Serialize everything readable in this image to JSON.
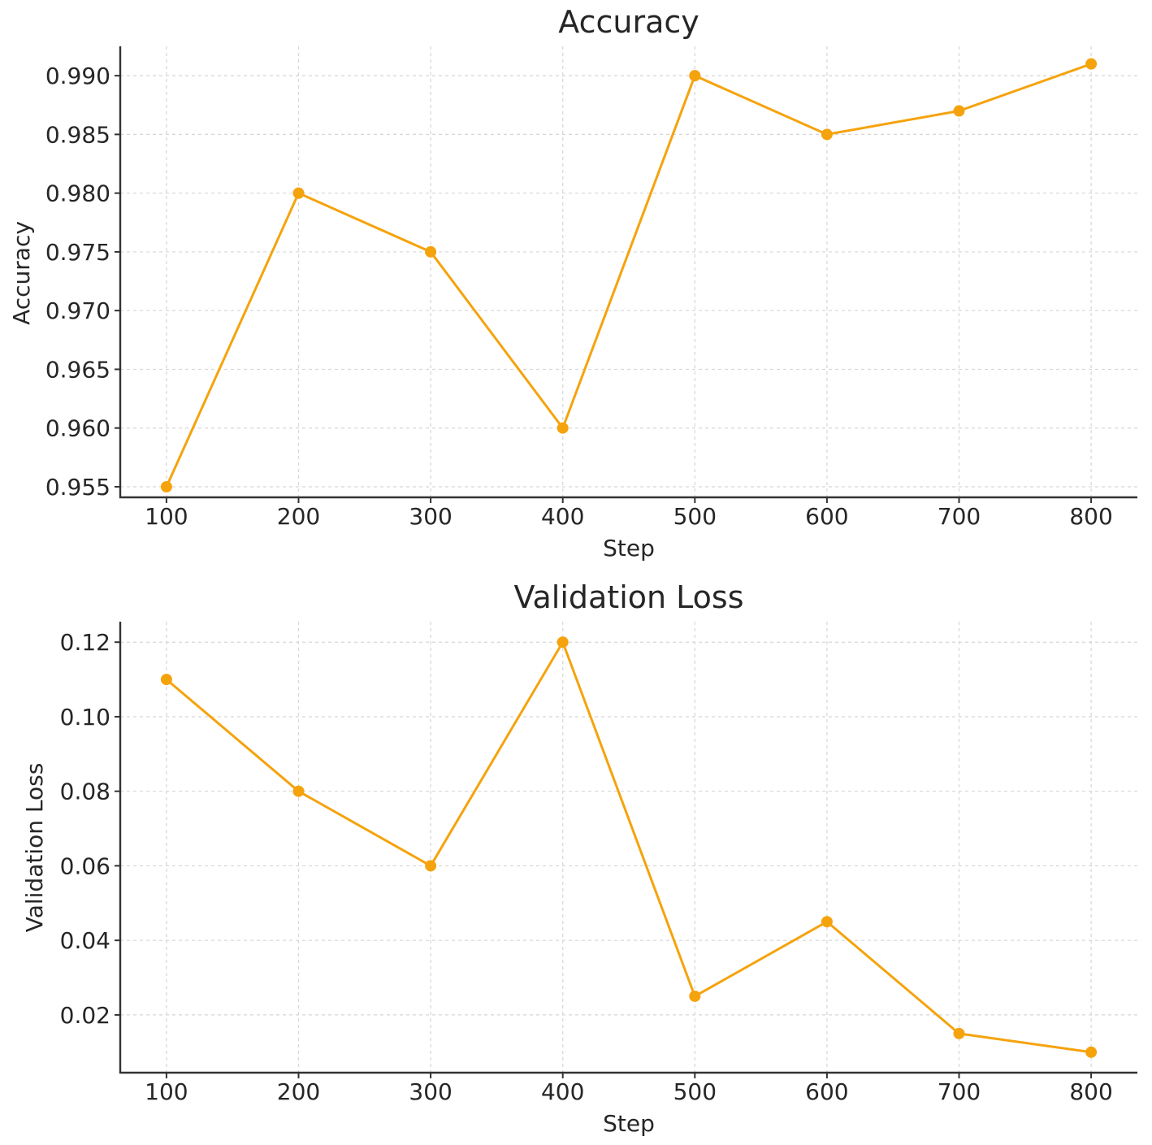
{
  "chart_data": [
    {
      "type": "line",
      "title": "Accuracy",
      "xlabel": "Step",
      "ylabel": "Accuracy",
      "x": [
        100,
        200,
        300,
        400,
        500,
        600,
        700,
        800
      ],
      "xticks": [
        "100",
        "200",
        "300",
        "400",
        "500",
        "600",
        "700",
        "800"
      ],
      "yticks": [
        "0.955",
        "0.960",
        "0.965",
        "0.970",
        "0.975",
        "0.980",
        "0.985",
        "0.990"
      ],
      "ylim": [
        0.9541,
        0.9925
      ],
      "xlim": [
        65,
        835
      ],
      "grid": true,
      "series": [
        {
          "values": [
            0.955,
            0.98,
            0.975,
            0.96,
            0.99,
            0.985,
            0.987,
            0.991
          ],
          "color": "#F5A30D"
        }
      ]
    },
    {
      "type": "line",
      "title": "Validation Loss",
      "xlabel": "Step",
      "ylabel": "Validation Loss",
      "x": [
        100,
        200,
        300,
        400,
        500,
        600,
        700,
        800
      ],
      "xticks": [
        "100",
        "200",
        "300",
        "400",
        "500",
        "600",
        "700",
        "800"
      ],
      "yticks": [
        "0.02",
        "0.04",
        "0.06",
        "0.08",
        "0.10",
        "0.12"
      ],
      "ylim": [
        0.0045,
        0.1255
      ],
      "xlim": [
        65,
        835
      ],
      "grid": true,
      "series": [
        {
          "values": [
            0.11,
            0.08,
            0.06,
            0.12,
            0.025,
            0.045,
            0.015,
            0.01
          ],
          "color": "#F5A30D"
        }
      ]
    }
  ]
}
